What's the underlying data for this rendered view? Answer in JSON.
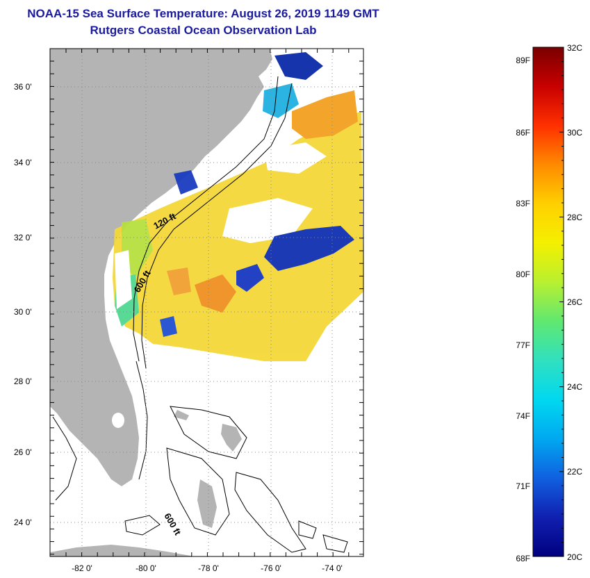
{
  "header": {
    "title": "NOAA-15 Sea Surface Temperature:  August 26, 2019 1149 GMT",
    "subtitle": "Rutgers Coastal Ocean Observation Lab"
  },
  "map": {
    "lat_ticks": [
      "36 0'",
      "34 0'",
      "32 0'",
      "30 0'",
      "28 0'",
      "26 0'",
      "24 0'"
    ],
    "lon_ticks": [
      "-82 0'",
      "-80 0'",
      "-78 0'",
      "-76 0'",
      "-74 0'"
    ],
    "contours": [
      "120 ft",
      "600 ft",
      "600 ft"
    ],
    "colors": {
      "land": "#b4b4b4",
      "frame": "#000000",
      "grid": "#888888"
    }
  },
  "colorbar": {
    "fahrenheit": [
      "89F",
      "86F",
      "83F",
      "80F",
      "77F",
      "74F",
      "71F",
      "68F"
    ],
    "celsius": [
      "32C",
      "30C",
      "28C",
      "26C",
      "24C",
      "22C",
      "20C"
    ],
    "range_f": [
      68,
      89.6
    ],
    "range_c": [
      20,
      32
    ],
    "stops": [
      "#7a0000",
      "#c80000",
      "#ff3000",
      "#ff8a00",
      "#ffd000",
      "#f4f000",
      "#b8f030",
      "#60e870",
      "#30e0c0",
      "#00d8f0",
      "#00a8f0",
      "#1060e0",
      "#1020b0",
      "#000080"
    ]
  }
}
